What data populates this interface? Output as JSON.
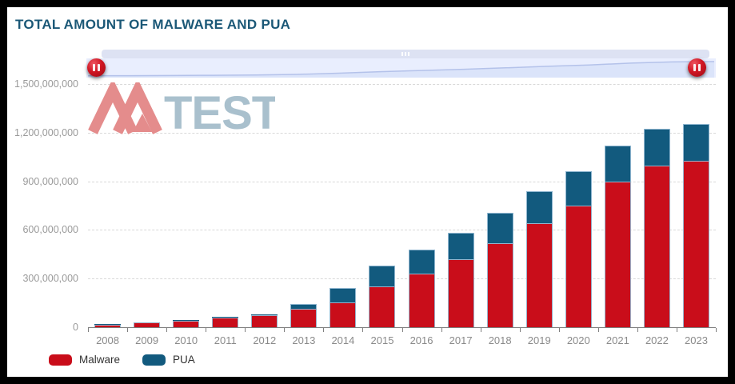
{
  "page": {
    "title": "TOTAL AMOUNT OF MALWARE AND PUA"
  },
  "watermark": {
    "monogram": "AV",
    "text": "TEST"
  },
  "navigator": {
    "left_handle": "pause-handle",
    "right_handle": "pause-handle"
  },
  "legend": [
    {
      "label": "Malware",
      "color": "#c90d1a"
    },
    {
      "label": "PUA",
      "color": "#125a7e"
    }
  ],
  "colors": {
    "title": "#1b5877",
    "malware": "#c90d1a",
    "pua": "#125a7e",
    "axis_text": "#9a9a9a",
    "grid": "#d9d9d9",
    "navigator_bg": "#e9eefe",
    "navigator_strip": "#dde2f3",
    "navigator_line": "#b4c2ea",
    "navigator_fill": "#dbe4fa",
    "handle": "#c11320"
  },
  "chart_data": {
    "type": "bar",
    "stacked": true,
    "title": "TOTAL AMOUNT OF MALWARE AND PUA",
    "categories": [
      "2008",
      "2009",
      "2010",
      "2011",
      "2012",
      "2013",
      "2014",
      "2015",
      "2016",
      "2017",
      "2018",
      "2019",
      "2020",
      "2021",
      "2022",
      "2023"
    ],
    "series": [
      {
        "name": "Malware",
        "color": "#c90d1a",
        "values": [
          17000000,
          28000000,
          42000000,
          60000000,
          76000000,
          115000000,
          155000000,
          250000000,
          330000000,
          420000000,
          520000000,
          640000000,
          750000000,
          900000000,
          995000000,
          1025000000
        ]
      },
      {
        "name": "PUA",
        "color": "#125a7e",
        "values": [
          1000000,
          1500000,
          2500000,
          3500000,
          5000000,
          27000000,
          88000000,
          128000000,
          150000000,
          165000000,
          187000000,
          200000000,
          210000000,
          220000000,
          228000000,
          228000000
        ]
      }
    ],
    "xlabel": "",
    "ylabel": "",
    "ylim": [
      0,
      1500000000
    ],
    "yticks": [
      "0",
      "300,000,000",
      "600,000,000",
      "900,000,000",
      "1,200,000,000",
      "1,500,000,000"
    ],
    "grid": true,
    "grid_style": "dashed",
    "legend_position": "bottom-left"
  }
}
